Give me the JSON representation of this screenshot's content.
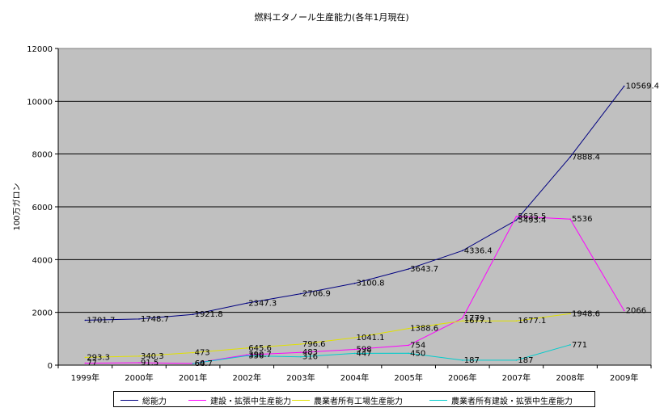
{
  "chart_data": {
    "type": "line",
    "title": "燃料エタノール生産能力(各年1月現在)",
    "xlabel": "",
    "ylabel": "100万ガロン",
    "ylim": [
      0,
      12000
    ],
    "yticks": [
      "0",
      "2000",
      "4000",
      "6000",
      "8000",
      "10000",
      "12000"
    ],
    "categories": [
      "1999年",
      "2000年",
      "2001年",
      "2002年",
      "2003年",
      "2004年",
      "2005年",
      "2006年",
      "2007年",
      "2008年",
      "2009年"
    ],
    "grid": true,
    "legend_position": "bottom",
    "series": [
      {
        "name": "総能力",
        "color": "#000080",
        "values": [
          1701.7,
          1748.7,
          1921.8,
          2347.3,
          2706.9,
          3100.8,
          3643.7,
          4336.4,
          5493.4,
          7888.4,
          10569.4
        ],
        "labels": [
          "1701.7",
          "1748.7",
          "1921.8",
          "2347.3",
          "2706.9",
          "3100.8",
          "3643.7",
          "4336.4",
          "5493.4",
          "7888.4",
          "10569.4"
        ]
      },
      {
        "name": "建設・拡張中生産能力",
        "color": "#ff00ff",
        "values": [
          77,
          91.5,
          64.7,
          390.7,
          483,
          598,
          754,
          1779,
          5635.5,
          5536,
          2066
        ],
        "labels": [
          "77",
          "91.5",
          "64.7",
          "390.7",
          "483",
          "598",
          "754",
          "1779",
          "5635.5",
          "5536",
          "2066"
        ]
      },
      {
        "name": "農業者所有工場生産能力",
        "color": "#e0e000",
        "values": [
          293.3,
          340.3,
          473,
          645.6,
          796.6,
          1041.1,
          1388.6,
          1677.1,
          1677.1,
          1948.6,
          null
        ],
        "labels": [
          "293.3",
          "340.3",
          "473",
          "645.6",
          "796.6",
          "1041.1",
          "1388.6",
          "1677.1",
          "1677.1",
          "1948.6",
          null
        ]
      },
      {
        "name": "農業者所有建設・拡張中生産能力",
        "color": "#00cccc",
        "values": [
          null,
          null,
          60,
          356,
          316,
          447,
          450,
          187,
          187,
          771,
          null
        ],
        "labels": [
          null,
          null,
          "60",
          "356",
          "316",
          "447",
          "450",
          "187",
          "187",
          "771",
          null
        ]
      }
    ]
  }
}
